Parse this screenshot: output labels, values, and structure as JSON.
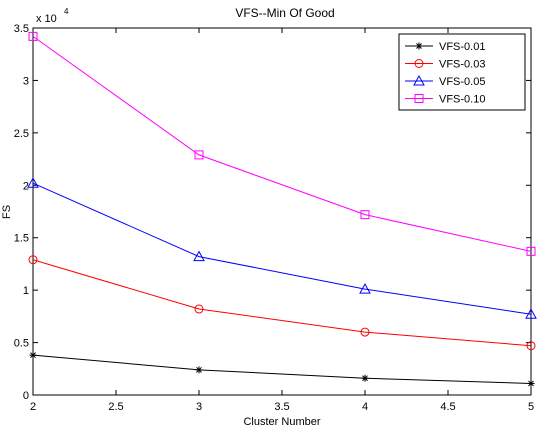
{
  "chart_data": {
    "type": "line",
    "title": "VFS--Min Of Good",
    "xlabel": "Cluster Number",
    "ylabel": "FS",
    "y_exponent_label": "x 10",
    "y_exponent_power": "4",
    "xlim": [
      2,
      5
    ],
    "ylim": [
      0,
      3.5
    ],
    "x_ticks": [
      "2",
      "2.5",
      "3",
      "3.5",
      "4",
      "4.5",
      "5"
    ],
    "y_ticks": [
      "0",
      "0.5",
      "1",
      "1.5",
      "2",
      "2.5",
      "3",
      "3.5"
    ],
    "x": [
      2,
      3,
      4,
      5
    ],
    "legend_position": "top-right",
    "grid": false,
    "series": [
      {
        "name": "VFS-0.01",
        "values": [
          0.38,
          0.24,
          0.16,
          0.11
        ],
        "color": "#000000",
        "marker": "star"
      },
      {
        "name": "VFS-0.03",
        "values": [
          1.29,
          0.82,
          0.6,
          0.47
        ],
        "color": "#ff0000",
        "marker": "circle"
      },
      {
        "name": "VFS-0.05",
        "values": [
          2.02,
          1.32,
          1.01,
          0.77
        ],
        "color": "#0000ff",
        "marker": "triangle"
      },
      {
        "name": "VFS-0.10",
        "values": [
          3.42,
          2.29,
          1.72,
          1.37
        ],
        "color": "#ff00ff",
        "marker": "square"
      }
    ]
  }
}
